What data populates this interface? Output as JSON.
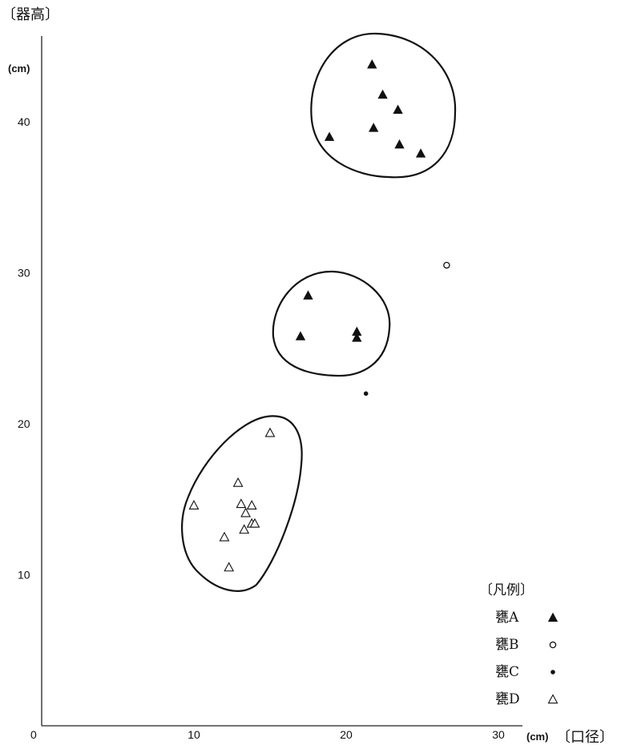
{
  "chart_data": {
    "type": "scatter",
    "title": "",
    "ylabel": "〔器高〕",
    "ylabel_unit": "(cm)",
    "xlabel": "〔口径〕",
    "xlabel_unit": "(cm)",
    "origin_label": "0",
    "xlim": [
      0,
      35
    ],
    "ylim": [
      0,
      47
    ],
    "x_ticks": [
      10,
      20,
      30
    ],
    "y_ticks": [
      10,
      20,
      30,
      40
    ],
    "grid": false,
    "legend": {
      "title": "〔凡例〕",
      "position": "bottom-right",
      "entries": [
        {
          "label": "甕A",
          "marker": "filled-triangle"
        },
        {
          "label": "甕B",
          "marker": "open-circle"
        },
        {
          "label": "甕C",
          "marker": "filled-dot"
        },
        {
          "label": "甕D",
          "marker": "open-triangle"
        }
      ]
    },
    "series": [
      {
        "name": "甕A",
        "marker": "filled-triangle",
        "points": [
          [
            21.7,
            43.8
          ],
          [
            22.4,
            41.8
          ],
          [
            23.4,
            40.8
          ],
          [
            21.8,
            39.6
          ],
          [
            18.9,
            39.0
          ],
          [
            23.5,
            38.5
          ],
          [
            24.9,
            37.9
          ],
          [
            17.5,
            28.5
          ],
          [
            17.0,
            25.8
          ],
          [
            20.7,
            26.1
          ],
          [
            20.7,
            25.7
          ]
        ]
      },
      {
        "name": "甕B",
        "marker": "open-circle",
        "points": [
          [
            26.6,
            30.5
          ]
        ]
      },
      {
        "name": "甕C",
        "marker": "filled-dot",
        "points": [
          [
            21.3,
            22.0
          ]
        ]
      },
      {
        "name": "甕D",
        "marker": "open-triangle",
        "points": [
          [
            15.0,
            19.4
          ],
          [
            12.9,
            16.1
          ],
          [
            10.0,
            14.6
          ],
          [
            13.1,
            14.7
          ],
          [
            13.8,
            14.6
          ],
          [
            13.4,
            14.1
          ],
          [
            13.8,
            13.4
          ],
          [
            14.0,
            13.4
          ],
          [
            13.3,
            13.0
          ],
          [
            12.0,
            12.5
          ],
          [
            12.3,
            10.5
          ]
        ]
      }
    ],
    "groupings": [
      {
        "encloses": "upper 甕A cluster"
      },
      {
        "encloses": "middle 甕A cluster"
      },
      {
        "encloses": "甕D cluster"
      }
    ]
  }
}
